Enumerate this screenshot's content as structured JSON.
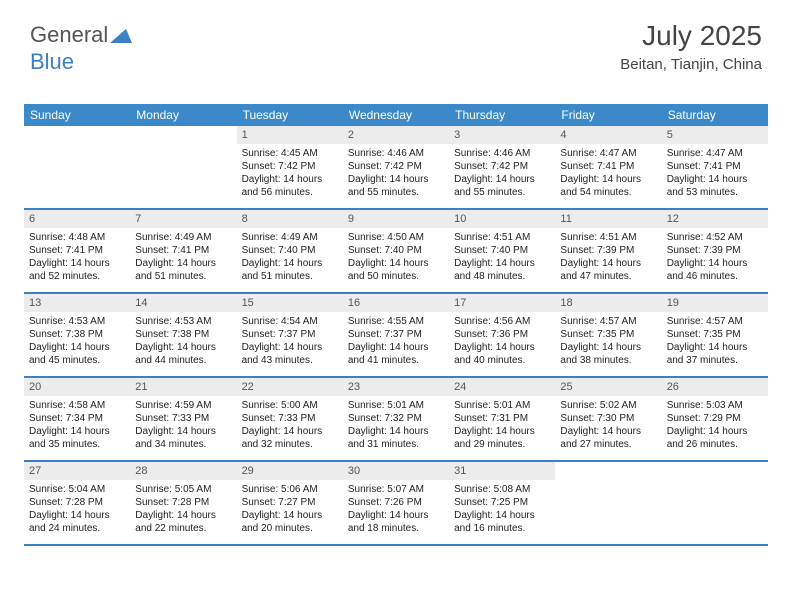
{
  "logo": {
    "part1": "General",
    "part2": "Blue"
  },
  "header": {
    "month": "July 2025",
    "location": "Beitan, Tianjin, China"
  },
  "colors": {
    "header_bg": "#3b89c9",
    "week_border": "#3b7fc4",
    "daynum_bg": "#ececec",
    "text": "#333333",
    "logo_gray": "#555555",
    "logo_blue": "#3b7fc4"
  },
  "dow": [
    "Sunday",
    "Monday",
    "Tuesday",
    "Wednesday",
    "Thursday",
    "Friday",
    "Saturday"
  ],
  "weeks": [
    [
      null,
      null,
      {
        "n": "1",
        "sr": "4:45 AM",
        "ss": "7:42 PM",
        "dl": "14 hours and 56 minutes."
      },
      {
        "n": "2",
        "sr": "4:46 AM",
        "ss": "7:42 PM",
        "dl": "14 hours and 55 minutes."
      },
      {
        "n": "3",
        "sr": "4:46 AM",
        "ss": "7:42 PM",
        "dl": "14 hours and 55 minutes."
      },
      {
        "n": "4",
        "sr": "4:47 AM",
        "ss": "7:41 PM",
        "dl": "14 hours and 54 minutes."
      },
      {
        "n": "5",
        "sr": "4:47 AM",
        "ss": "7:41 PM",
        "dl": "14 hours and 53 minutes."
      }
    ],
    [
      {
        "n": "6",
        "sr": "4:48 AM",
        "ss": "7:41 PM",
        "dl": "14 hours and 52 minutes."
      },
      {
        "n": "7",
        "sr": "4:49 AM",
        "ss": "7:41 PM",
        "dl": "14 hours and 51 minutes."
      },
      {
        "n": "8",
        "sr": "4:49 AM",
        "ss": "7:40 PM",
        "dl": "14 hours and 51 minutes."
      },
      {
        "n": "9",
        "sr": "4:50 AM",
        "ss": "7:40 PM",
        "dl": "14 hours and 50 minutes."
      },
      {
        "n": "10",
        "sr": "4:51 AM",
        "ss": "7:40 PM",
        "dl": "14 hours and 48 minutes."
      },
      {
        "n": "11",
        "sr": "4:51 AM",
        "ss": "7:39 PM",
        "dl": "14 hours and 47 minutes."
      },
      {
        "n": "12",
        "sr": "4:52 AM",
        "ss": "7:39 PM",
        "dl": "14 hours and 46 minutes."
      }
    ],
    [
      {
        "n": "13",
        "sr": "4:53 AM",
        "ss": "7:38 PM",
        "dl": "14 hours and 45 minutes."
      },
      {
        "n": "14",
        "sr": "4:53 AM",
        "ss": "7:38 PM",
        "dl": "14 hours and 44 minutes."
      },
      {
        "n": "15",
        "sr": "4:54 AM",
        "ss": "7:37 PM",
        "dl": "14 hours and 43 minutes."
      },
      {
        "n": "16",
        "sr": "4:55 AM",
        "ss": "7:37 PM",
        "dl": "14 hours and 41 minutes."
      },
      {
        "n": "17",
        "sr": "4:56 AM",
        "ss": "7:36 PM",
        "dl": "14 hours and 40 minutes."
      },
      {
        "n": "18",
        "sr": "4:57 AM",
        "ss": "7:35 PM",
        "dl": "14 hours and 38 minutes."
      },
      {
        "n": "19",
        "sr": "4:57 AM",
        "ss": "7:35 PM",
        "dl": "14 hours and 37 minutes."
      }
    ],
    [
      {
        "n": "20",
        "sr": "4:58 AM",
        "ss": "7:34 PM",
        "dl": "14 hours and 35 minutes."
      },
      {
        "n": "21",
        "sr": "4:59 AM",
        "ss": "7:33 PM",
        "dl": "14 hours and 34 minutes."
      },
      {
        "n": "22",
        "sr": "5:00 AM",
        "ss": "7:33 PM",
        "dl": "14 hours and 32 minutes."
      },
      {
        "n": "23",
        "sr": "5:01 AM",
        "ss": "7:32 PM",
        "dl": "14 hours and 31 minutes."
      },
      {
        "n": "24",
        "sr": "5:01 AM",
        "ss": "7:31 PM",
        "dl": "14 hours and 29 minutes."
      },
      {
        "n": "25",
        "sr": "5:02 AM",
        "ss": "7:30 PM",
        "dl": "14 hours and 27 minutes."
      },
      {
        "n": "26",
        "sr": "5:03 AM",
        "ss": "7:29 PM",
        "dl": "14 hours and 26 minutes."
      }
    ],
    [
      {
        "n": "27",
        "sr": "5:04 AM",
        "ss": "7:28 PM",
        "dl": "14 hours and 24 minutes."
      },
      {
        "n": "28",
        "sr": "5:05 AM",
        "ss": "7:28 PM",
        "dl": "14 hours and 22 minutes."
      },
      {
        "n": "29",
        "sr": "5:06 AM",
        "ss": "7:27 PM",
        "dl": "14 hours and 20 minutes."
      },
      {
        "n": "30",
        "sr": "5:07 AM",
        "ss": "7:26 PM",
        "dl": "14 hours and 18 minutes."
      },
      {
        "n": "31",
        "sr": "5:08 AM",
        "ss": "7:25 PM",
        "dl": "14 hours and 16 minutes."
      },
      null,
      null
    ]
  ],
  "labels": {
    "sunrise": "Sunrise:",
    "sunset": "Sunset:",
    "daylight": "Daylight:"
  }
}
